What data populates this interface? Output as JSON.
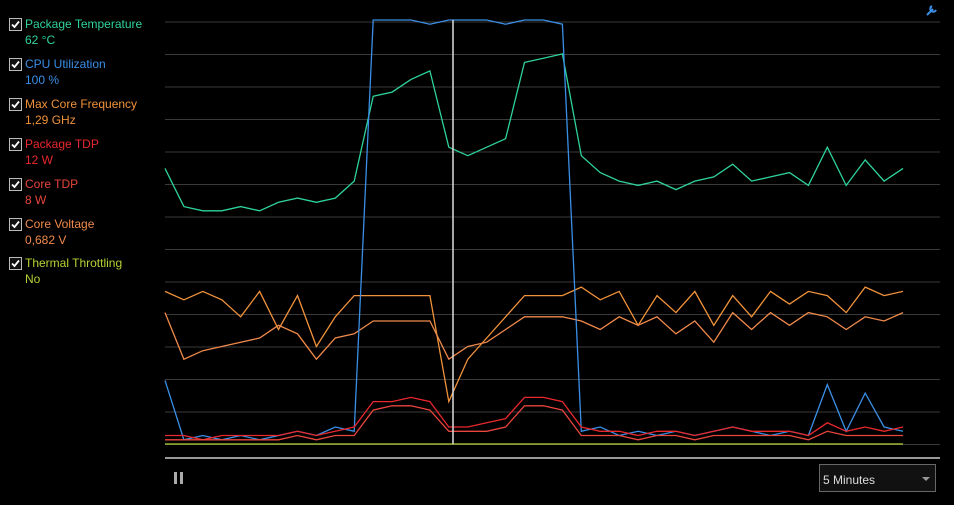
{
  "legend": {
    "items": [
      {
        "label": "Package Temperature",
        "value": "62 °C",
        "color": "#2fd39a",
        "values": [
          65,
          56,
          55,
          55,
          56,
          55,
          57,
          58,
          57,
          58,
          62,
          82,
          83,
          86,
          88,
          70,
          68,
          70,
          72,
          90,
          91,
          92,
          68,
          64,
          62,
          61,
          62,
          60,
          62,
          63,
          66,
          62,
          63,
          64,
          61,
          70,
          61,
          67,
          62,
          65
        ]
      },
      {
        "label": "CPU Utilization",
        "value": "100 %",
        "color": "#3a8fe6",
        "values": [
          15,
          1,
          2,
          1,
          2,
          1,
          2,
          3,
          2,
          4,
          3,
          100,
          100,
          100,
          99,
          100,
          100,
          100,
          99,
          100,
          100,
          99,
          3,
          4,
          2,
          3,
          2,
          3,
          2,
          3,
          4,
          3,
          2,
          3,
          2,
          14,
          3,
          12,
          4,
          3
        ]
      },
      {
        "label": "Max Core Frequency",
        "value": "1,29 GHz",
        "color": "#f0923a",
        "values": [
          36,
          34,
          36,
          34,
          30,
          36,
          27,
          35,
          23,
          30,
          35,
          35,
          35,
          35,
          35,
          10,
          20,
          25,
          30,
          35,
          35,
          35,
          37,
          34,
          36,
          28,
          35,
          31,
          36,
          28,
          35,
          30,
          36,
          33,
          36,
          35,
          31,
          37,
          35,
          36
        ]
      },
      {
        "label": "Package TDP",
        "value": "12 W",
        "color": "#e8282d",
        "values": [
          2,
          2,
          1,
          2,
          2,
          2,
          2,
          3,
          2,
          3,
          4,
          10,
          10,
          11,
          10,
          4,
          4,
          5,
          6,
          11,
          11,
          10,
          4,
          3,
          3,
          2,
          3,
          3,
          2,
          3,
          4,
          3,
          3,
          3,
          2,
          5,
          3,
          4,
          3,
          4
        ]
      },
      {
        "label": "Core TDP",
        "value": "8 W",
        "color": "#e8453c",
        "values": [
          1,
          1,
          1,
          1,
          1,
          1,
          1,
          2,
          1,
          2,
          2,
          8,
          9,
          9,
          8,
          3,
          3,
          3,
          4,
          9,
          9,
          8,
          2,
          2,
          2,
          1,
          2,
          2,
          1,
          2,
          2,
          2,
          2,
          2,
          1,
          3,
          2,
          2,
          2,
          2
        ]
      },
      {
        "label": "Core Voltage",
        "value": "0,682 V",
        "color": "#f08a4b",
        "values": [
          31,
          20,
          22,
          23,
          24,
          25,
          28,
          26,
          20,
          25,
          26,
          29,
          29,
          29,
          29,
          20,
          23,
          24,
          27,
          30,
          30,
          30,
          29,
          27,
          30,
          28,
          30,
          26,
          29,
          24,
          31,
          27,
          31,
          28,
          31,
          30,
          27,
          30,
          29,
          31
        ]
      },
      {
        "label": "Thermal Throttling",
        "value": "No",
        "color": "#b5d334",
        "values": [
          0,
          0,
          0,
          0,
          0,
          0,
          0,
          0,
          0,
          0,
          0,
          0,
          0,
          0,
          0,
          0,
          0,
          0,
          0,
          0,
          0,
          0,
          0,
          0,
          0,
          0,
          0,
          0,
          0,
          0,
          0,
          0,
          0,
          0,
          0,
          0,
          0,
          0,
          0,
          0
        ]
      }
    ]
  },
  "graph": {
    "ylim": [
      0,
      100
    ]
  },
  "controls": {
    "duration": "5 Minutes"
  }
}
